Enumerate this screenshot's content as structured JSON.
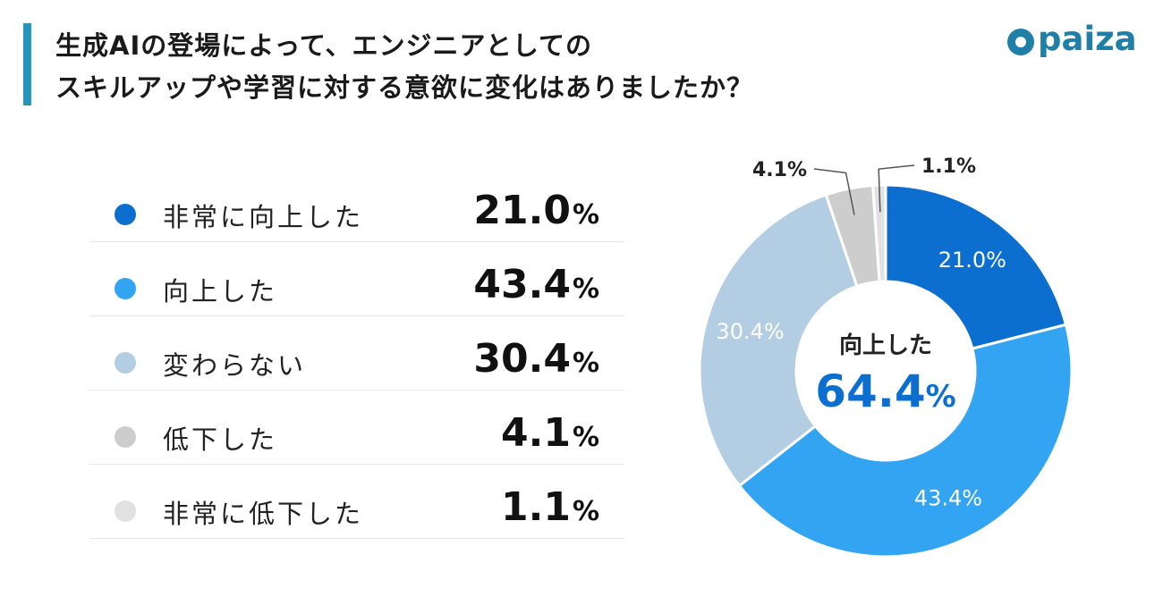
{
  "header": {
    "title_line1": "生成AIの登場によって、エンジニアとしての",
    "title_line2": "スキルアップや学習に対する意欲に変化はありましたか？",
    "brand_logo_text": "paiza"
  },
  "chart_data": {
    "type": "pie",
    "title": "生成AIの登場によって、エンジニアとしてのスキルアップや学習に対する意欲に変化はありましたか？",
    "unit": "%",
    "categories": [
      "非常に向上した",
      "向上した",
      "変わらない",
      "低下した",
      "非常に低下した"
    ],
    "values": [
      21.0,
      43.4,
      30.4,
      4.1,
      1.1
    ],
    "value_labels": [
      "21.0",
      "43.4",
      "30.4",
      "4.1",
      "1.1"
    ],
    "colors": [
      "#0c6fd0",
      "#33a4f2",
      "#b3cde2",
      "#cdcdcd",
      "#e1e1e1"
    ],
    "legend_placement": "left",
    "center_label": "向上した",
    "center_value": "64.4",
    "pct_symbol": "%"
  }
}
